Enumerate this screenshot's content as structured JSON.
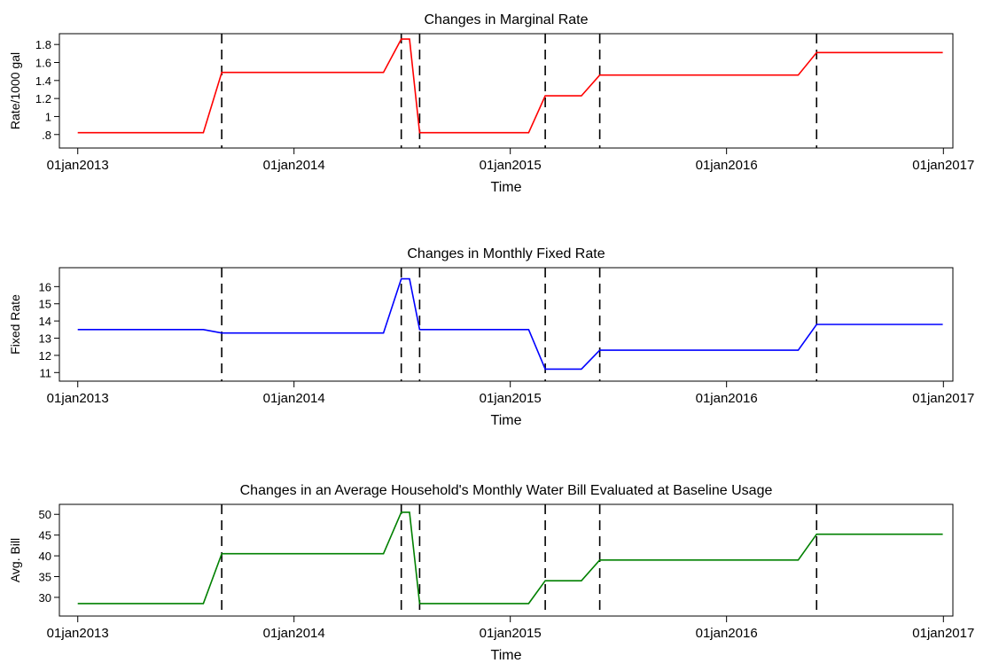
{
  "chart_data": [
    {
      "type": "line",
      "title": "Changes in Marginal Rate",
      "xlabel": "Time",
      "ylabel": "Rate/1000 gal",
      "x_ticks": [
        "01jan2013",
        "01jan2014",
        "01jan2015",
        "01jan2016",
        "01jan2017"
      ],
      "y_ticks": [
        {
          "value": 0.8,
          "label": ".8"
        },
        {
          "value": 1,
          "label": "1"
        },
        {
          "value": 1.2,
          "label": "1.2"
        },
        {
          "value": 1.4,
          "label": "1.4"
        },
        {
          "value": 1.6,
          "label": "1.6"
        },
        {
          "value": 1.8,
          "label": "1.8"
        }
      ],
      "ylim": [
        0.65,
        1.92
      ],
      "xlim": [
        "2012-12-01",
        "2017-01-17"
      ],
      "vlines": [
        "2013-09-01",
        "2014-07-01",
        "2014-08-01",
        "2015-03-01",
        "2015-06-01",
        "2016-06-01"
      ],
      "color": "#ff0000",
      "points": [
        [
          "2013-01-01",
          0.82
        ],
        [
          "2013-08-01",
          0.82
        ],
        [
          "2013-09-01",
          1.49
        ],
        [
          "2014-06-01",
          1.49
        ],
        [
          "2014-07-01",
          1.86
        ],
        [
          "2014-07-15",
          1.86
        ],
        [
          "2014-08-01",
          0.82
        ],
        [
          "2015-02-01",
          0.82
        ],
        [
          "2015-03-01",
          1.23
        ],
        [
          "2015-05-01",
          1.23
        ],
        [
          "2015-06-01",
          1.46
        ],
        [
          "2016-05-01",
          1.46
        ],
        [
          "2016-06-01",
          1.71
        ],
        [
          "2016-12-31",
          1.71
        ]
      ]
    },
    {
      "type": "line",
      "title": "Changes in Monthly Fixed Rate",
      "xlabel": "Time",
      "ylabel": "Fixed Rate",
      "x_ticks": [
        "01jan2013",
        "01jan2014",
        "01jan2015",
        "01jan2016",
        "01jan2017"
      ],
      "y_ticks": [
        {
          "value": 11,
          "label": "11"
        },
        {
          "value": 12,
          "label": "12"
        },
        {
          "value": 13,
          "label": "13"
        },
        {
          "value": 14,
          "label": "14"
        },
        {
          "value": 15,
          "label": "15"
        },
        {
          "value": 16,
          "label": "16"
        }
      ],
      "ylim": [
        10.5,
        17.1
      ],
      "xlim": [
        "2012-12-01",
        "2017-01-17"
      ],
      "vlines": [
        "2013-09-01",
        "2014-07-01",
        "2014-08-01",
        "2015-03-01",
        "2015-06-01",
        "2016-06-01"
      ],
      "color": "#0000ff",
      "points": [
        [
          "2013-01-01",
          13.5
        ],
        [
          "2013-08-01",
          13.5
        ],
        [
          "2013-09-01",
          13.3
        ],
        [
          "2014-06-01",
          13.3
        ],
        [
          "2014-07-01",
          16.45
        ],
        [
          "2014-07-15",
          16.45
        ],
        [
          "2014-08-01",
          13.5
        ],
        [
          "2015-02-01",
          13.5
        ],
        [
          "2015-03-01",
          11.2
        ],
        [
          "2015-05-01",
          11.2
        ],
        [
          "2015-06-01",
          12.3
        ],
        [
          "2016-05-01",
          12.3
        ],
        [
          "2016-06-01",
          13.8
        ],
        [
          "2016-12-31",
          13.8
        ]
      ]
    },
    {
      "type": "line",
      "title": "Changes in an Average Household's Monthly Water Bill Evaluated at Baseline Usage",
      "xlabel": "Time",
      "ylabel": "Avg. Bill",
      "x_ticks": [
        "01jan2013",
        "01jan2014",
        "01jan2015",
        "01jan2016",
        "01jan2017"
      ],
      "y_ticks": [
        {
          "value": 30,
          "label": "30"
        },
        {
          "value": 35,
          "label": "35"
        },
        {
          "value": 40,
          "label": "40"
        },
        {
          "value": 45,
          "label": "45"
        },
        {
          "value": 50,
          "label": "50"
        }
      ],
      "ylim": [
        25.5,
        52.4
      ],
      "xlim": [
        "2012-12-01",
        "2017-01-17"
      ],
      "vlines": [
        "2013-09-01",
        "2014-07-01",
        "2014-08-01",
        "2015-03-01",
        "2015-06-01",
        "2016-06-01"
      ],
      "color": "#008000",
      "points": [
        [
          "2013-01-01",
          28.5
        ],
        [
          "2013-08-01",
          28.5
        ],
        [
          "2013-09-01",
          40.5
        ],
        [
          "2014-06-01",
          40.5
        ],
        [
          "2014-07-01",
          50.5
        ],
        [
          "2014-07-15",
          50.5
        ],
        [
          "2014-08-01",
          28.5
        ],
        [
          "2015-02-01",
          28.5
        ],
        [
          "2015-03-01",
          34.0
        ],
        [
          "2015-05-01",
          34.0
        ],
        [
          "2015-06-01",
          39.0
        ],
        [
          "2016-05-01",
          39.0
        ],
        [
          "2016-06-01",
          45.2
        ],
        [
          "2016-12-31",
          45.2
        ]
      ]
    }
  ]
}
